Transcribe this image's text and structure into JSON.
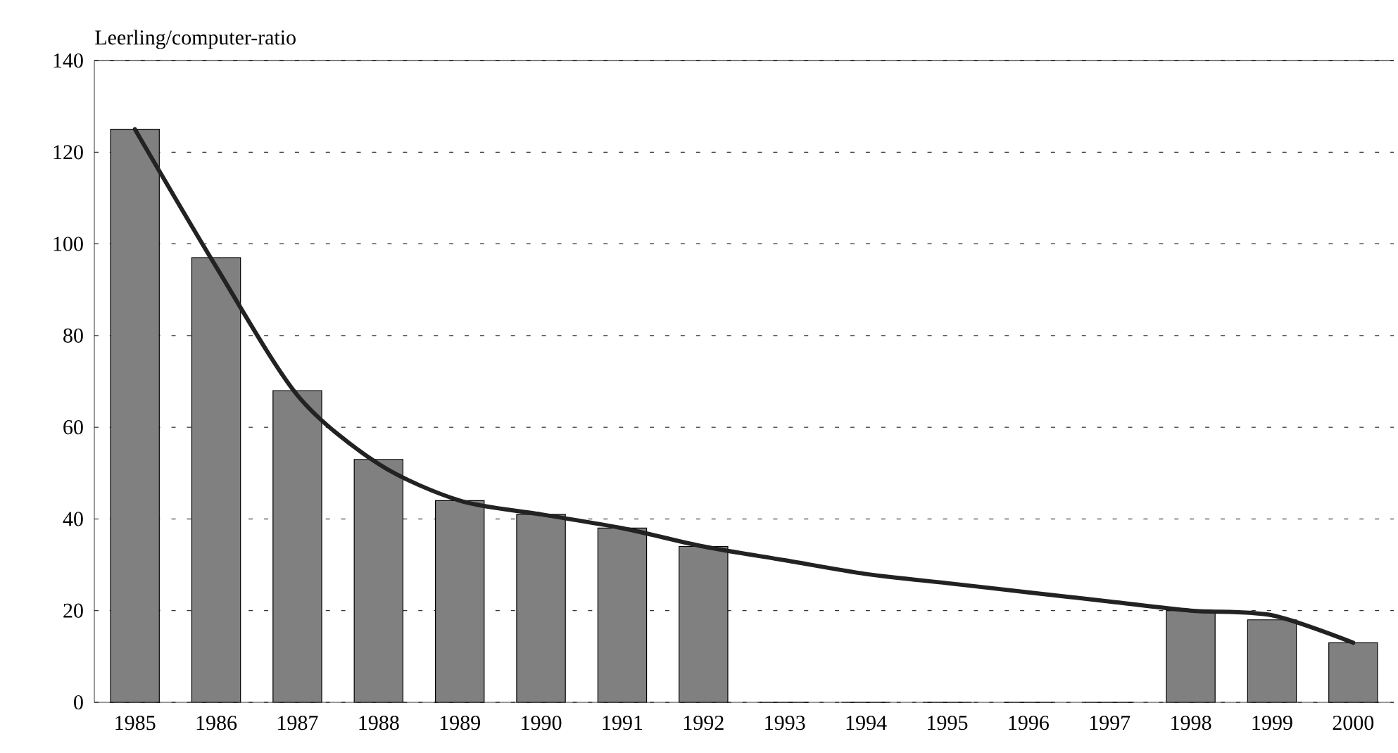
{
  "chart_data": {
    "type": "bar",
    "ylabel": "Leerling/computer-ratio",
    "categories": [
      "1985",
      "1986",
      "1987",
      "1988",
      "1989",
      "1990",
      "1991",
      "1992",
      "1993",
      "1994",
      "1995",
      "1996",
      "1997",
      "1998",
      "1999",
      "2000"
    ],
    "series": [
      {
        "color": "#808080",
        "values": [
          125,
          97,
          68,
          53,
          44,
          41,
          38,
          34,
          0,
          0,
          0,
          0,
          0,
          20,
          18,
          13
        ]
      },
      {
        "type": "line",
        "color": "#222222",
        "values": [
          125,
          95,
          67,
          52,
          44,
          41,
          38,
          34,
          31,
          28,
          26,
          24,
          22,
          20,
          19,
          13
        ]
      }
    ],
    "ylim": [
      0,
      140
    ],
    "yticks": [
      0,
      20,
      40,
      60,
      80,
      100,
      120,
      140
    ],
    "grid": "y"
  }
}
